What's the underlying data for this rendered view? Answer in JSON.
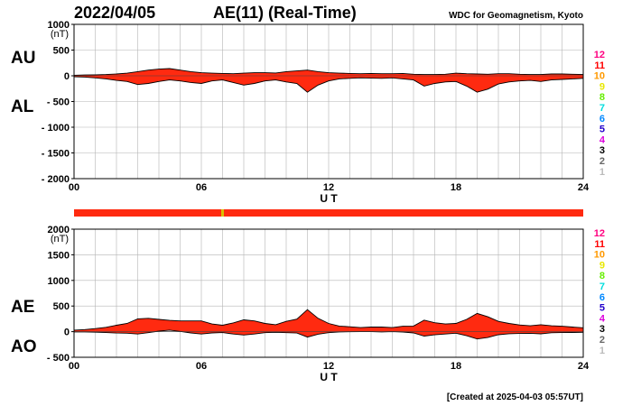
{
  "header": {
    "date": "2022/04/05",
    "title": "AE(11) (Real-Time)",
    "source": "WDC for Geomagnetism, Kyoto"
  },
  "footer": {
    "created": "[Created at 2025-04-03 05:57UT]"
  },
  "colors": {
    "fill": "#ff2a10",
    "grid": "#b4b4b4",
    "status_bar": "#ff2a10",
    "status_marker": "#d8c000",
    "outline": "#000000"
  },
  "station_legend": [
    {
      "label": "12",
      "color": "#ff0080"
    },
    {
      "label": "11",
      "color": "#ff0000"
    },
    {
      "label": "10",
      "color": "#ff9900"
    },
    {
      "label": "9",
      "color": "#e8e800"
    },
    {
      "label": "8",
      "color": "#66ee00"
    },
    {
      "label": "7",
      "color": "#00dddd"
    },
    {
      "label": "6",
      "color": "#0088ff"
    },
    {
      "label": "5",
      "color": "#2200cc"
    },
    {
      "label": "4",
      "color": "#dd00dd"
    },
    {
      "label": "3",
      "color": "#000000"
    },
    {
      "label": "2",
      "color": "#666666"
    },
    {
      "label": "1",
      "color": "#bbbbbb"
    }
  ],
  "chart_data": [
    {
      "type": "area",
      "panel": "AU/AL",
      "series_names": [
        "AU",
        "AL"
      ],
      "unit_label": "(nT)",
      "xlabel": "U T",
      "xlim": [
        0,
        24
      ],
      "ylim": [
        -2000,
        1000
      ],
      "x_ticks": [
        0,
        6,
        12,
        18,
        24
      ],
      "x_tick_labels": [
        "00",
        "06",
        "12",
        "18",
        "24"
      ],
      "y_ticks": [
        1000,
        500,
        0,
        -500,
        -1000,
        -1500,
        -2000
      ],
      "y_tick_labels": [
        "1000",
        "500",
        "0",
        "- 500",
        "- 1000",
        "- 1500",
        "- 2000"
      ],
      "grid": true,
      "x": [
        0,
        0.5,
        1,
        1.5,
        2,
        2.5,
        3,
        3.5,
        4,
        4.5,
        5,
        5.5,
        6,
        6.5,
        7,
        7.5,
        8,
        8.5,
        9,
        9.5,
        10,
        10.5,
        11,
        11.5,
        12,
        12.5,
        13,
        13.5,
        14,
        14.5,
        15,
        15.5,
        16,
        16.5,
        17,
        17.5,
        18,
        18.5,
        19,
        19.5,
        20,
        20.5,
        21,
        21.5,
        22,
        22.5,
        23,
        23.5,
        24
      ],
      "upper": [
        10,
        15,
        20,
        25,
        35,
        50,
        80,
        110,
        130,
        140,
        110,
        80,
        60,
        50,
        45,
        40,
        50,
        60,
        60,
        55,
        80,
        95,
        110,
        80,
        60,
        50,
        45,
        40,
        45,
        40,
        40,
        45,
        30,
        25,
        25,
        30,
        50,
        40,
        35,
        30,
        40,
        40,
        30,
        25,
        25,
        35,
        35,
        30,
        25
      ],
      "lower": [
        -20,
        -25,
        -40,
        -60,
        -90,
        -110,
        -170,
        -150,
        -110,
        -80,
        -100,
        -130,
        -150,
        -100,
        -80,
        -130,
        -180,
        -150,
        -100,
        -80,
        -120,
        -150,
        -320,
        -180,
        -100,
        -60,
        -50,
        -40,
        -45,
        -50,
        -40,
        -60,
        -80,
        -200,
        -150,
        -120,
        -110,
        -200,
        -320,
        -260,
        -160,
        -120,
        -100,
        -90,
        -110,
        -80,
        -70,
        -60,
        -50
      ],
      "status_marker_x": 7.0
    },
    {
      "type": "area",
      "panel": "AE/AO",
      "series_names": [
        "AE",
        "AO"
      ],
      "unit_label": "(nT)",
      "xlabel": "U T",
      "xlim": [
        0,
        24
      ],
      "ylim": [
        -500,
        2000
      ],
      "x_ticks": [
        0,
        6,
        12,
        18,
        24
      ],
      "x_tick_labels": [
        "00",
        "06",
        "12",
        "18",
        "24"
      ],
      "y_ticks": [
        2000,
        1500,
        1000,
        500,
        0,
        -500
      ],
      "y_tick_labels": [
        "2000",
        "1500",
        "1000",
        "500",
        "0",
        "- 500"
      ],
      "grid": true,
      "x": [
        0,
        0.5,
        1,
        1.5,
        2,
        2.5,
        3,
        3.5,
        4,
        4.5,
        5,
        5.5,
        6,
        6.5,
        7,
        7.5,
        8,
        8.5,
        9,
        9.5,
        10,
        10.5,
        11,
        11.5,
        12,
        12.5,
        13,
        13.5,
        14,
        14.5,
        15,
        15.5,
        16,
        16.5,
        17,
        17.5,
        18,
        18.5,
        19,
        19.5,
        20,
        20.5,
        21,
        21.5,
        22,
        22.5,
        23,
        23.5,
        24
      ],
      "upper": [
        30,
        40,
        60,
        85,
        125,
        160,
        250,
        260,
        240,
        220,
        210,
        210,
        210,
        150,
        125,
        170,
        230,
        210,
        160,
        135,
        200,
        245,
        430,
        260,
        160,
        110,
        95,
        80,
        90,
        90,
        80,
        105,
        110,
        225,
        175,
        150,
        160,
        240,
        355,
        290,
        200,
        160,
        130,
        115,
        135,
        115,
        105,
        90,
        75
      ],
      "lower": [
        -5,
        -5,
        -10,
        -17,
        -27,
        -30,
        -45,
        -20,
        10,
        30,
        5,
        -25,
        -45,
        -25,
        -17,
        -45,
        -65,
        -45,
        -20,
        -12,
        -20,
        -27,
        -105,
        -50,
        -20,
        -5,
        -2,
        0,
        0,
        -5,
        0,
        -7,
        -25,
        -87,
        -62,
        -45,
        -30,
        -80,
        -142,
        -115,
        -60,
        -40,
        -35,
        -32,
        -42,
        -22,
        -17,
        -15,
        -12
      ]
    }
  ]
}
